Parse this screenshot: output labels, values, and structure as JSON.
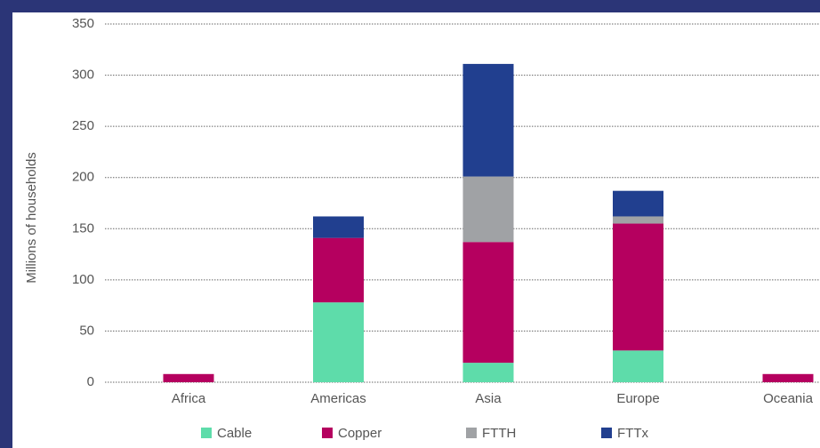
{
  "chart_data": {
    "type": "stacked_bar",
    "y_label": "Millions of households",
    "categories": [
      "Africa",
      "Americas",
      "Asia",
      "Europe",
      "Oceania"
    ],
    "series": [
      {
        "name": "Cable",
        "color": "#5edcaa",
        "values": [
          0,
          78,
          19,
          31,
          0
        ]
      },
      {
        "name": "Copper",
        "color": "#b5005f",
        "values": [
          8,
          63,
          118,
          124,
          8
        ]
      },
      {
        "name": "FTTH",
        "color": "#a0a2a5",
        "values": [
          0,
          0,
          64,
          7,
          0
        ]
      },
      {
        "name": "FTTx",
        "color": "#213f8f",
        "values": [
          0,
          21,
          110,
          25,
          0
        ]
      }
    ],
    "ylim": [
      0,
      350
    ],
    "yticks": [
      0,
      50,
      100,
      150,
      200,
      250,
      300,
      350
    ],
    "grid": true
  }
}
